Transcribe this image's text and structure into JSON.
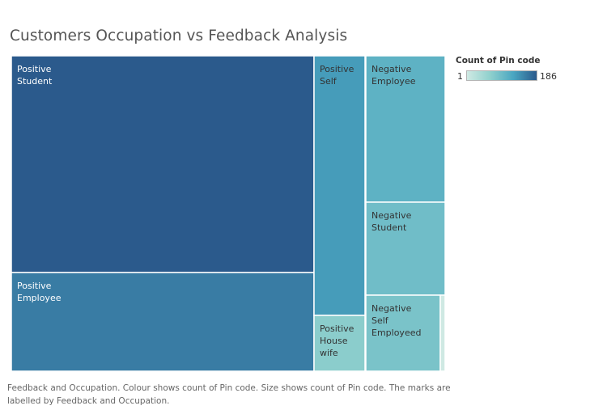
{
  "title": "Customers Occupation vs Feedback Analysis",
  "legend": {
    "title": "Count of Pin code",
    "min": "1",
    "max": "186"
  },
  "caption": "Feedback and Occupation.  Colour shows count of Pin code.  Size shows count of Pin code.  The marks are labelled by Feedback and Occupation.",
  "chart_data": {
    "type": "treemap",
    "measure": "Count of Pin code",
    "color_range": [
      1,
      186
    ],
    "colors": {
      "low": "#cfe9e3",
      "high": "#2b5a8c"
    },
    "groups": [
      {
        "name": "Positive",
        "items": [
          {
            "label": [
              "Positive",
              "Student"
            ],
            "value": 186
          },
          {
            "label": [
              "Positive",
              "Employee"
            ],
            "value": 92
          },
          {
            "label": [
              "Positive",
              "Self"
            ],
            "value": 48
          },
          {
            "label": [
              "Positive",
              "House",
              "wife"
            ],
            "value": 7
          }
        ]
      },
      {
        "name": "Negative",
        "items": [
          {
            "label": [
              "Negative",
              "Employee"
            ],
            "value": 23
          },
          {
            "label": [
              "Negative",
              "Student"
            ],
            "value": 14
          },
          {
            "label": [
              "Negative",
              "Self",
              "Employeed"
            ],
            "value": 11
          },
          {
            "label": [],
            "value": 1
          }
        ]
      }
    ]
  }
}
